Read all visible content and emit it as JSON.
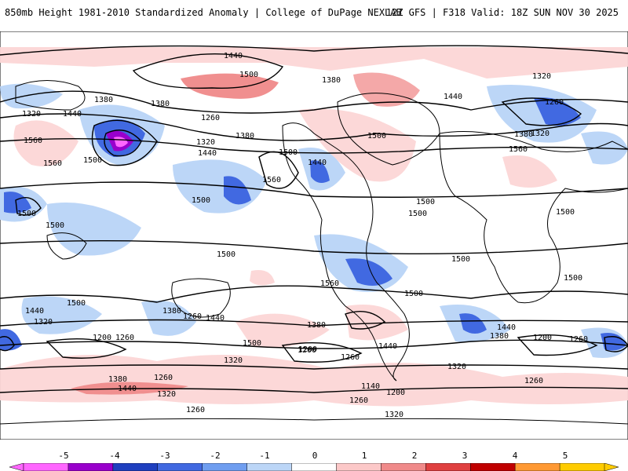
{
  "header": {
    "title": "850mb Height 1981-2010 Standardized Anomaly | College of DuPage NEXLAB",
    "run_info": "12Z GFS | F318 Valid: 18Z SUN NOV 30 2025"
  },
  "map": {
    "contour_labels": [
      "1440",
      "1500",
      "1380",
      "1320",
      "1440",
      "1380",
      "1320",
      "1260",
      "1380",
      "1260",
      "1380",
      "1320",
      "1440",
      "1380",
      "1320",
      "1440",
      "1500",
      "1560",
      "1500",
      "1560",
      "1500",
      "1440",
      "1560",
      "1500",
      "1500",
      "1500",
      "1500",
      "1500",
      "1500",
      "1500",
      "1500",
      "1500",
      "1440",
      "1320",
      "1380",
      "1260",
      "1200",
      "1260",
      "1440",
      "1500",
      "1380",
      "1320",
      "1200",
      "1260",
      "1440",
      "1380",
      "1200",
      "1260",
      "1440",
      "1200",
      "1140",
      "1260",
      "1320",
      "1380",
      "1440",
      "1260",
      "1320",
      "1260",
      "1200",
      "1320",
      "1260",
      "1560",
      "1500",
      "1560",
      "1500"
    ]
  },
  "colorbar": {
    "ticks": [
      "-5",
      "-4",
      "-3",
      "-2",
      "-1",
      "0",
      "1",
      "2",
      "3",
      "4",
      "5"
    ],
    "colors": [
      "#ff66ff",
      "#9900cc",
      "#1f3fbf",
      "#4169e1",
      "#6f9ef0",
      "#bcd6f7",
      "#ffffff",
      "#fcc8c8",
      "#f08a8a",
      "#e04040",
      "#c00000",
      "#ff9933",
      "#ffcc00"
    ]
  }
}
